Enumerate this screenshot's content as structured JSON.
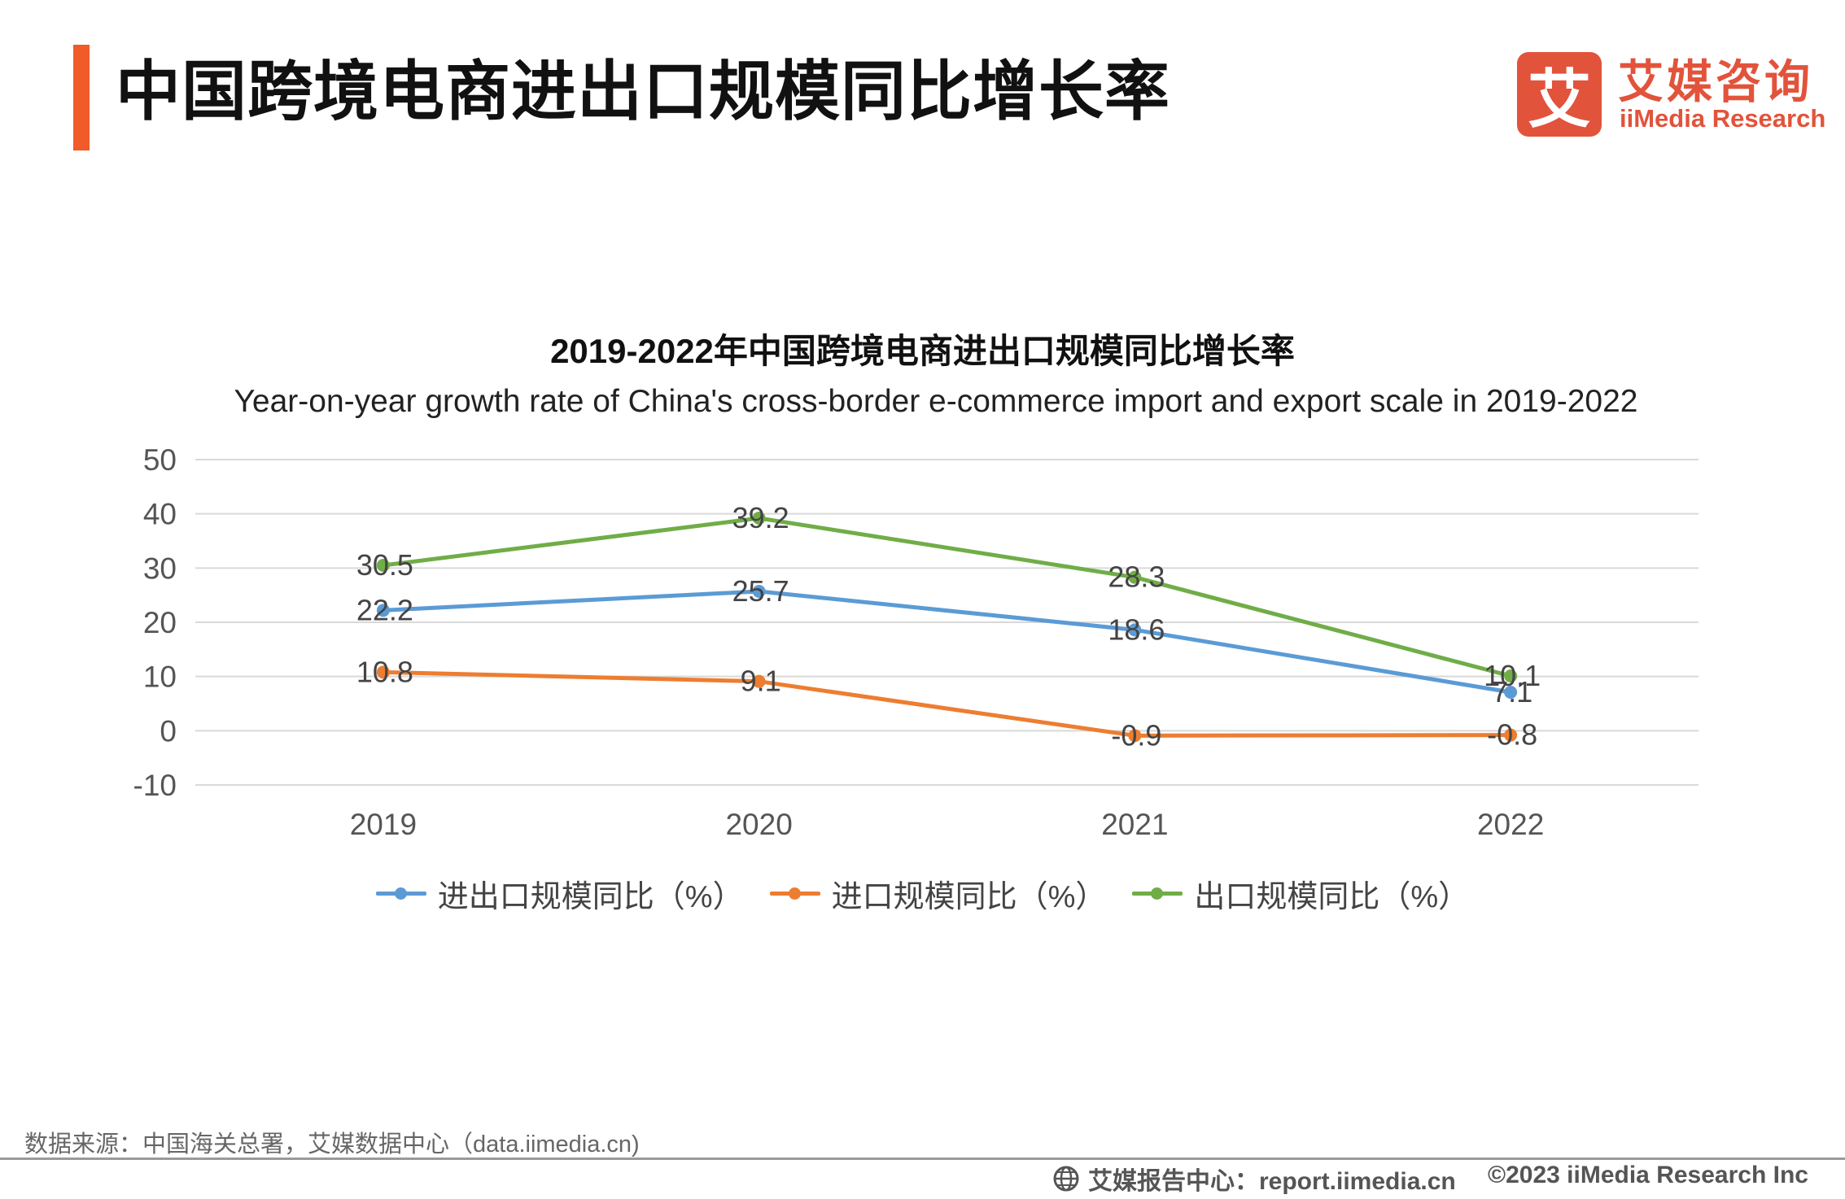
{
  "header": {
    "title": "中国跨境电商进出口规模同比增长率",
    "accent_color": "#f15a29"
  },
  "logo": {
    "mark": "艾",
    "name_cn": "艾媒咨询",
    "name_en": "iiMedia Research",
    "color": "#e2533b"
  },
  "chart_data": {
    "type": "line",
    "title": "2019-2022年中国跨境电商进出口规模同比增长率",
    "subtitle": "Year-on-year growth rate of China's cross-border e-commerce import and export scale in 2019-2022",
    "categories": [
      "2019",
      "2020",
      "2021",
      "2022"
    ],
    "ylim": [
      -10,
      50
    ],
    "yticks": [
      50,
      40,
      30,
      20,
      10,
      0,
      -10
    ],
    "grid": true,
    "legend_position": "bottom",
    "series": [
      {
        "name": "进出口规模同比（%）",
        "values": [
          22.2,
          25.7,
          18.6,
          7.1
        ],
        "labels": [
          "22.2",
          "25.7",
          "18.6",
          "7.1"
        ],
        "color": "#5b9bd5"
      },
      {
        "name": "进口规模同比（%）",
        "values": [
          10.8,
          9.1,
          -0.9,
          -0.8
        ],
        "labels": [
          "10.8",
          "9.1",
          "-0.9",
          "-0.8"
        ],
        "color": "#ed7d31"
      },
      {
        "name": "出口规模同比（%）",
        "values": [
          30.5,
          39.2,
          28.3,
          10.1
        ],
        "labels": [
          "30.5",
          "39.2",
          "28.3",
          "10.1"
        ],
        "color": "#70ad47"
      }
    ]
  },
  "footer": {
    "source": "数据来源：中国海关总署，艾媒数据中心（data.iimedia.cn)",
    "site": "艾媒报告中心：report.iimedia.cn",
    "copyright": "©2023  iiMedia Research  Inc",
    "site_icon": "globe-icon"
  }
}
